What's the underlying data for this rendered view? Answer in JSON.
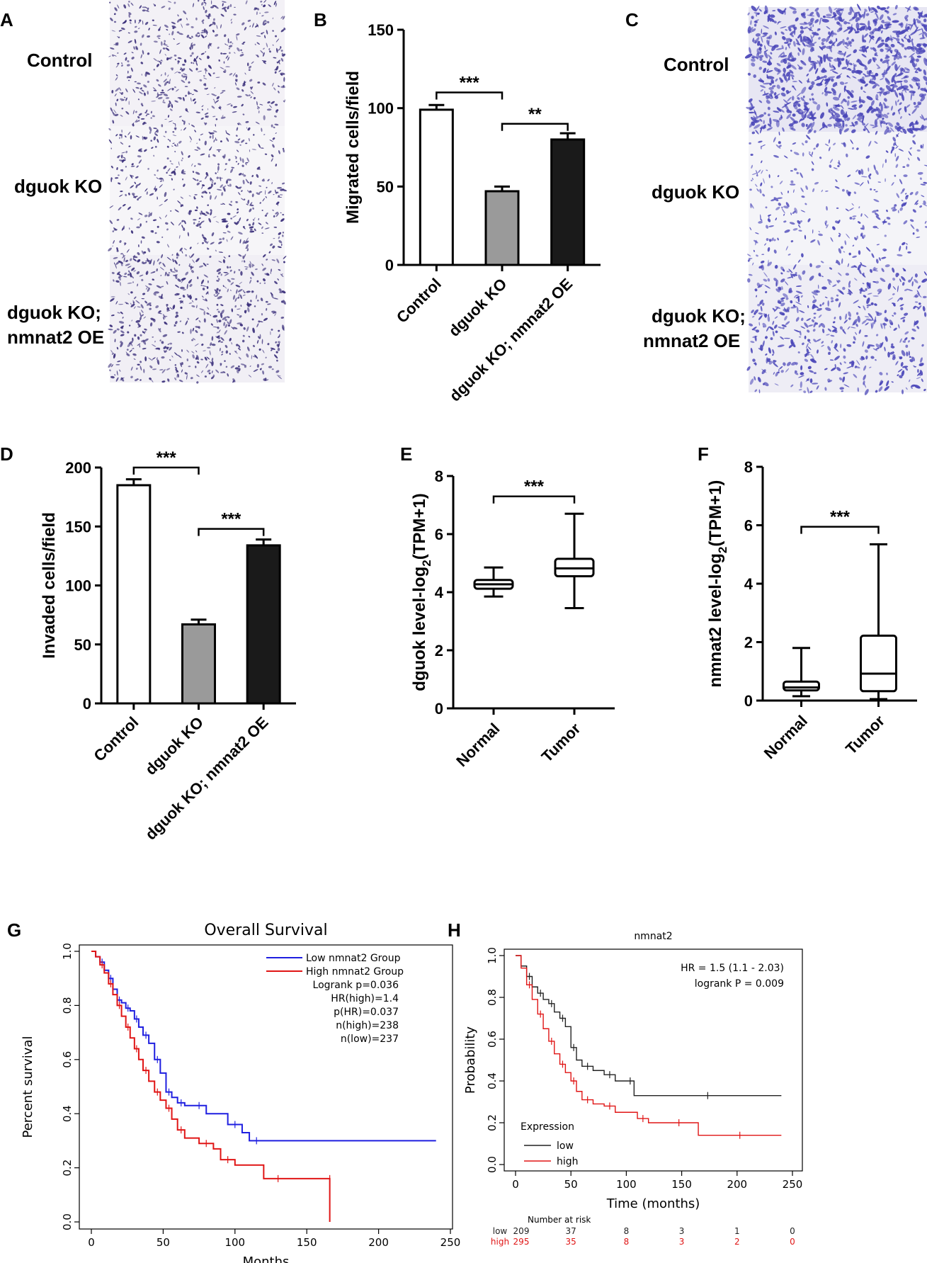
{
  "panels": {
    "A": {
      "letter": "A",
      "rows": [
        "Control",
        "dguok KO",
        "dguok KO;",
        "nmnat2 OE"
      ]
    },
    "B": {
      "letter": "B"
    },
    "C": {
      "letter": "C",
      "rows": [
        "Control",
        "dguok KO",
        "dguok KO;",
        "nmnat2 OE"
      ]
    },
    "D": {
      "letter": "D"
    },
    "E": {
      "letter": "E"
    },
    "F": {
      "letter": "F"
    },
    "G": {
      "letter": "G"
    },
    "H": {
      "letter": "H"
    }
  },
  "colors": {
    "micrograph_bg": "#f4f2f6",
    "stain_A": "#3a2f7a",
    "stain_C": "#4a46b8",
    "bar_gray": "#9a9a9a",
    "bar_black": "#1a1a1a",
    "km_blue": "#1f1fe0",
    "km_red": "#e01515",
    "km_black": "#222222"
  },
  "chart_data": [
    {
      "id": "B",
      "type": "bar",
      "categories": [
        "Control",
        "dguok KO",
        "dguok KO; nmnat2 OE"
      ],
      "values": [
        99,
        47,
        80
      ],
      "errors": [
        3,
        3,
        4
      ],
      "ylabel": "Migrated cells/field",
      "ylim": [
        0,
        150
      ],
      "yticks": [
        0,
        50,
        100,
        150
      ],
      "significance": [
        {
          "from": 0,
          "to": 1,
          "label": "***",
          "y": 110
        },
        {
          "from": 1,
          "to": 2,
          "label": "**",
          "y": 90
        }
      ]
    },
    {
      "id": "D",
      "type": "bar",
      "categories": [
        "Control",
        "dguok KO",
        "dguok KO; nmnat2 OE"
      ],
      "values": [
        185,
        67,
        134
      ],
      "errors": [
        5,
        4,
        5
      ],
      "ylabel": "Invaded cells/field",
      "ylim": [
        0,
        200
      ],
      "yticks": [
        0,
        50,
        100,
        150,
        200
      ],
      "significance": [
        {
          "from": 0,
          "to": 1,
          "label": "***",
          "y": 200
        },
        {
          "from": 1,
          "to": 2,
          "label": "***",
          "y": 148
        }
      ]
    },
    {
      "id": "E",
      "type": "box",
      "categories": [
        "Normal",
        "Tumor"
      ],
      "boxes": [
        {
          "min": 3.85,
          "q1": 4.12,
          "median": 4.27,
          "q3": 4.42,
          "max": 4.85
        },
        {
          "min": 3.45,
          "q1": 4.55,
          "median": 4.82,
          "q3": 5.15,
          "max": 6.7
        }
      ],
      "ylabel_main": "dguok level-log",
      "ylabel_sub": "2",
      "ylabel_tail": "(TPM+1)",
      "ylim": [
        0,
        8
      ],
      "yticks": [
        0,
        2,
        4,
        6,
        8
      ],
      "significance": [
        {
          "from": 0,
          "to": 1,
          "label": "***",
          "y": 7.3
        }
      ]
    },
    {
      "id": "F",
      "type": "box",
      "categories": [
        "Normal",
        "Tumor"
      ],
      "boxes": [
        {
          "min": 0.15,
          "q1": 0.35,
          "median": 0.45,
          "q3": 0.65,
          "max": 1.8
        },
        {
          "min": 0.05,
          "q1": 0.32,
          "median": 0.92,
          "q3": 2.22,
          "max": 5.35
        }
      ],
      "ylabel_main": "nmnat2 level-log",
      "ylabel_sub": "2",
      "ylabel_tail": "(TPM+1)",
      "ylim": [
        0,
        8
      ],
      "yticks": [
        0,
        2,
        4,
        6,
        8
      ],
      "significance": [
        {
          "from": 0,
          "to": 1,
          "label": "***",
          "y": 5.95
        }
      ]
    },
    {
      "id": "G",
      "type": "line",
      "title": "Overall Survival",
      "xlabel": "Months",
      "ylabel": "Percent survival",
      "xlim": [
        0,
        250
      ],
      "ylim": [
        0,
        1.0
      ],
      "xticks": [
        0,
        50,
        100,
        150,
        200,
        250
      ],
      "yticks": [
        0.0,
        0.2,
        0.4,
        0.6,
        0.8,
        1.0
      ],
      "ytick_labels": [
        "0.0",
        "0.2",
        "0.4",
        "0.6",
        "0.8",
        "1.0"
      ],
      "legend": [
        "Low nmnat2 Group",
        "High nmnat2 Group"
      ],
      "stats": [
        "Logrank p=0.036",
        "HR(high)=1.4",
        "p(HR)=0.037",
        "n(high)=238",
        "n(low)=237"
      ],
      "series": [
        {
          "name": "Low nmnat2 Group",
          "color": "#1f1fe0",
          "x": [
            0,
            3,
            6,
            9,
            12,
            15,
            18,
            21,
            24,
            27,
            30,
            33,
            36,
            40,
            44,
            48,
            52,
            56,
            60,
            65,
            70,
            80,
            95,
            105,
            110,
            120,
            240
          ],
          "y": [
            1.0,
            0.98,
            0.96,
            0.93,
            0.9,
            0.86,
            0.82,
            0.81,
            0.79,
            0.78,
            0.75,
            0.72,
            0.69,
            0.66,
            0.6,
            0.55,
            0.48,
            0.46,
            0.44,
            0.43,
            0.43,
            0.4,
            0.36,
            0.33,
            0.3,
            0.3,
            0.3
          ]
        },
        {
          "name": "High nmnat2 Group",
          "color": "#e01515",
          "x": [
            0,
            3,
            6,
            9,
            12,
            15,
            18,
            21,
            24,
            27,
            30,
            33,
            36,
            40,
            44,
            48,
            52,
            56,
            60,
            65,
            75,
            85,
            90,
            100,
            120,
            140,
            166,
            166
          ],
          "y": [
            1.0,
            0.98,
            0.95,
            0.92,
            0.88,
            0.84,
            0.8,
            0.76,
            0.72,
            0.68,
            0.64,
            0.6,
            0.56,
            0.52,
            0.48,
            0.45,
            0.42,
            0.38,
            0.34,
            0.31,
            0.29,
            0.27,
            0.23,
            0.21,
            0.16,
            0.16,
            0.16,
            0.0
          ]
        }
      ]
    },
    {
      "id": "H",
      "type": "line",
      "title": "nmnat2",
      "xlabel": "Time (months)",
      "ylabel": "Probability",
      "xlim": [
        0,
        250
      ],
      "ylim": [
        0,
        1.0
      ],
      "xticks": [
        0,
        50,
        100,
        150,
        200,
        250
      ],
      "yticks": [
        0.0,
        0.2,
        0.4,
        0.6,
        0.8,
        1.0
      ],
      "ytick_labels": [
        "0.0",
        "0.2",
        "0.4",
        "0.6",
        "0.8",
        "1.0"
      ],
      "annotation": [
        "HR = 1.5 (1.1 - 2.03)",
        "logrank P = 0.009"
      ],
      "legend_title": "Expression",
      "legend": [
        "low",
        "high"
      ],
      "series": [
        {
          "name": "low",
          "color": "#222222",
          "x": [
            0,
            5,
            10,
            15,
            20,
            25,
            30,
            35,
            40,
            45,
            50,
            55,
            60,
            70,
            80,
            90,
            100,
            107,
            107,
            240
          ],
          "y": [
            1.0,
            0.95,
            0.9,
            0.85,
            0.82,
            0.79,
            0.77,
            0.73,
            0.7,
            0.66,
            0.56,
            0.5,
            0.47,
            0.45,
            0.43,
            0.4,
            0.4,
            0.4,
            0.33,
            0.33
          ]
        },
        {
          "name": "high",
          "color": "#e01515",
          "x": [
            0,
            5,
            10,
            15,
            20,
            25,
            30,
            35,
            40,
            45,
            50,
            55,
            60,
            70,
            80,
            90,
            110,
            120,
            130,
            165,
            165,
            240
          ],
          "y": [
            1.0,
            0.94,
            0.86,
            0.79,
            0.72,
            0.65,
            0.59,
            0.53,
            0.48,
            0.44,
            0.4,
            0.35,
            0.31,
            0.29,
            0.28,
            0.25,
            0.22,
            0.2,
            0.2,
            0.2,
            0.14,
            0.14
          ]
        }
      ],
      "risk_table": {
        "header": "Number at risk",
        "rows": [
          {
            "label": "low",
            "color": "#222222",
            "values": [
              "209",
              "37",
              "8",
              "3",
              "1",
              "0"
            ]
          },
          {
            "label": "high",
            "color": "#e01515",
            "values": [
              "295",
              "35",
              "8",
              "3",
              "2",
              "0"
            ]
          }
        ]
      }
    }
  ]
}
